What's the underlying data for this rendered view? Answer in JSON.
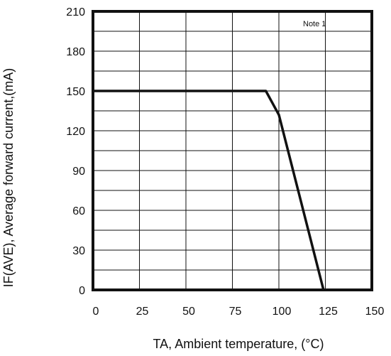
{
  "chart_data": {
    "type": "line",
    "xlabel": "TA, Ambient temperature, (°C)",
    "ylabel": "IF(AVE), Average forward current,(mA)",
    "xlim": [
      0,
      150
    ],
    "ylim": [
      0,
      210
    ],
    "x_ticks": [
      0,
      25,
      50,
      75,
      100,
      125,
      150
    ],
    "y_ticks": [
      0,
      30,
      60,
      90,
      120,
      150,
      180,
      210
    ],
    "grid": true,
    "annotation": "Note 1",
    "series": [
      {
        "x": [
          0,
          93,
          100,
          124
        ],
        "y": [
          150,
          150,
          132,
          0
        ]
      }
    ]
  }
}
